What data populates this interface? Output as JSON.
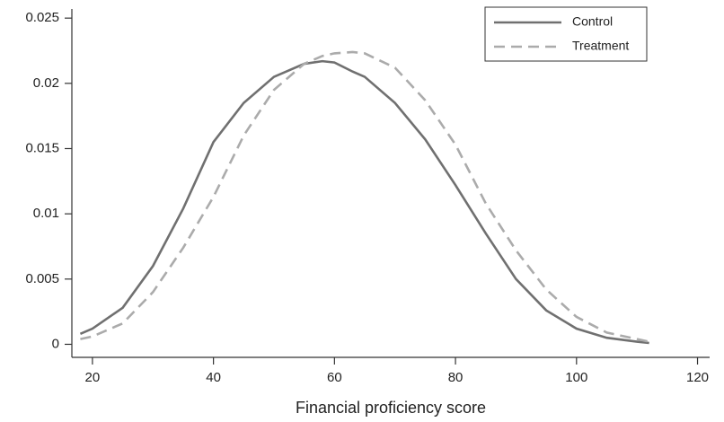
{
  "chart_data": {
    "type": "line",
    "x_label": "Financial proficiency score",
    "x": [
      18,
      20,
      25,
      30,
      35,
      40,
      45,
      50,
      55,
      58,
      60,
      63,
      65,
      70,
      75,
      80,
      85,
      90,
      95,
      100,
      105,
      110,
      112
    ],
    "series": [
      {
        "name": "Control",
        "color": "#707070",
        "linestyle": "solid",
        "values": [
          0.0008,
          0.0012,
          0.0028,
          0.006,
          0.0104,
          0.0155,
          0.0185,
          0.0205,
          0.0215,
          0.0217,
          0.0216,
          0.0209,
          0.0205,
          0.0185,
          0.0157,
          0.0122,
          0.0085,
          0.005,
          0.0026,
          0.0012,
          0.0005,
          0.0002,
          0.0001
        ]
      },
      {
        "name": "Treatment",
        "color": "#ababab",
        "linestyle": "dashed",
        "values": [
          0.0004,
          0.0006,
          0.0016,
          0.004,
          0.0074,
          0.0113,
          0.016,
          0.0195,
          0.0215,
          0.0221,
          0.0223,
          0.0224,
          0.0223,
          0.0212,
          0.0187,
          0.0153,
          0.0108,
          0.0072,
          0.0042,
          0.0021,
          0.0009,
          0.0004,
          0.0002
        ]
      }
    ],
    "xlim": [
      16.6,
      122
    ],
    "xticks": [
      20,
      40,
      60,
      80,
      100,
      120
    ],
    "ylim": [
      -0.001,
      0.0257
    ],
    "yticks": [
      0,
      0.005,
      0.01,
      0.015,
      0.02,
      0.025
    ],
    "legend": "top-right"
  }
}
